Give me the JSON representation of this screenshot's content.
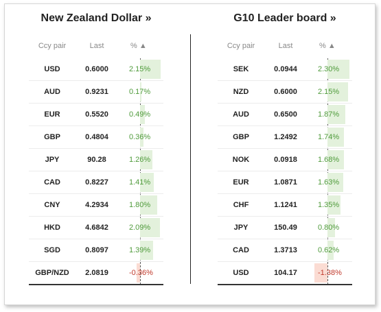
{
  "left": {
    "title": "New Zealand Dollar »",
    "headers": {
      "pair": "Ccy pair",
      "last": "Last",
      "pct": "% ▲"
    },
    "rows": [
      {
        "pair": "USD",
        "last": "0.6000",
        "pct": "2.15%",
        "value": 2.15
      },
      {
        "pair": "AUD",
        "last": "0.9231",
        "pct": "0.17%",
        "value": 0.17
      },
      {
        "pair": "EUR",
        "last": "0.5520",
        "pct": "0.49%",
        "value": 0.49
      },
      {
        "pair": "GBP",
        "last": "0.4804",
        "pct": "0.36%",
        "value": 0.36
      },
      {
        "pair": "JPY",
        "last": "90.28",
        "pct": "1.26%",
        "value": 1.26
      },
      {
        "pair": "CAD",
        "last": "0.8227",
        "pct": "1.41%",
        "value": 1.41
      },
      {
        "pair": "CNY",
        "last": "4.2934",
        "pct": "1.80%",
        "value": 1.8
      },
      {
        "pair": "HKD",
        "last": "4.6842",
        "pct": "2.09%",
        "value": 2.09
      },
      {
        "pair": "SGD",
        "last": "0.8097",
        "pct": "1.39%",
        "value": 1.39
      },
      {
        "pair": "GBP/NZD",
        "last": "2.0819",
        "pct": "-0.36%",
        "value": -0.36
      }
    ]
  },
  "right": {
    "title": "G10 Leader board »",
    "headers": {
      "pair": "Ccy pair",
      "last": "Last",
      "pct": "% ▲"
    },
    "rows": [
      {
        "pair": "SEK",
        "last": "0.0944",
        "pct": "2.30%",
        "value": 2.3
      },
      {
        "pair": "NZD",
        "last": "0.6000",
        "pct": "2.15%",
        "value": 2.15
      },
      {
        "pair": "AUD",
        "last": "0.6500",
        "pct": "1.87%",
        "value": 1.87
      },
      {
        "pair": "GBP",
        "last": "1.2492",
        "pct": "1.74%",
        "value": 1.74
      },
      {
        "pair": "NOK",
        "last": "0.0918",
        "pct": "1.68%",
        "value": 1.68
      },
      {
        "pair": "EUR",
        "last": "1.0871",
        "pct": "1.63%",
        "value": 1.63
      },
      {
        "pair": "CHF",
        "last": "1.1241",
        "pct": "1.35%",
        "value": 1.35
      },
      {
        "pair": "JPY",
        "last": "150.49",
        "pct": "0.80%",
        "value": 0.8
      },
      {
        "pair": "CAD",
        "last": "1.3713",
        "pct": "0.62%",
        "value": 0.62
      },
      {
        "pair": "USD",
        "last": "104.17",
        "pct": "-1.38%",
        "value": -1.38
      }
    ]
  },
  "colors": {
    "positive_bar": "#e3f1dc",
    "negative_bar": "#fbdcd3",
    "positive_text": "#4e9a3a",
    "negative_text": "#c0392b"
  }
}
